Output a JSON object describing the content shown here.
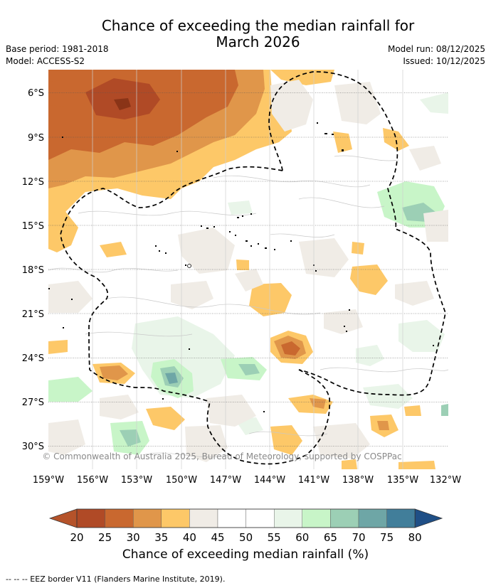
{
  "title_line1": "Chance of exceeding the median rainfall for",
  "title_line2": "March 2026",
  "base_period": "Base period: 1981-2018",
  "model": "Model: ACCESS-S2",
  "model_run": "Model run: 08/12/2025",
  "issued": "Issued: 10/12/2025",
  "copyright": "© Commonwealth of Australia 2025, Bureau of Meteorology, supported by COSPPac",
  "lon_ticks": [
    "159°W",
    "156°W",
    "153°W",
    "150°W",
    "147°W",
    "144°W",
    "141°W",
    "138°W",
    "135°W",
    "132°W"
  ],
  "lat_ticks": [
    "6°S",
    "9°S",
    "12°S",
    "15°S",
    "18°S",
    "21°S",
    "24°S",
    "27°S",
    "30°S"
  ],
  "colorbar": {
    "ticks": [
      "20",
      "25",
      "30",
      "35",
      "40",
      "45",
      "50",
      "55",
      "60",
      "65",
      "70",
      "75",
      "80"
    ],
    "colors": [
      "#b5532a",
      "#b04a26",
      "#c9682f",
      "#e0964a",
      "#fdc868",
      "#f0ece6",
      "#ffffff",
      "#ffffff",
      "#e9f5e9",
      "#c8f5c8",
      "#9ccfb5",
      "#6ea6a6",
      "#417e9a",
      "#1f4f86"
    ],
    "title": "Chance of exceeding median rainfall (%)"
  },
  "footer": "--  --  -- EEZ border V11 (Flanders Marine Institute, 2019)."
}
